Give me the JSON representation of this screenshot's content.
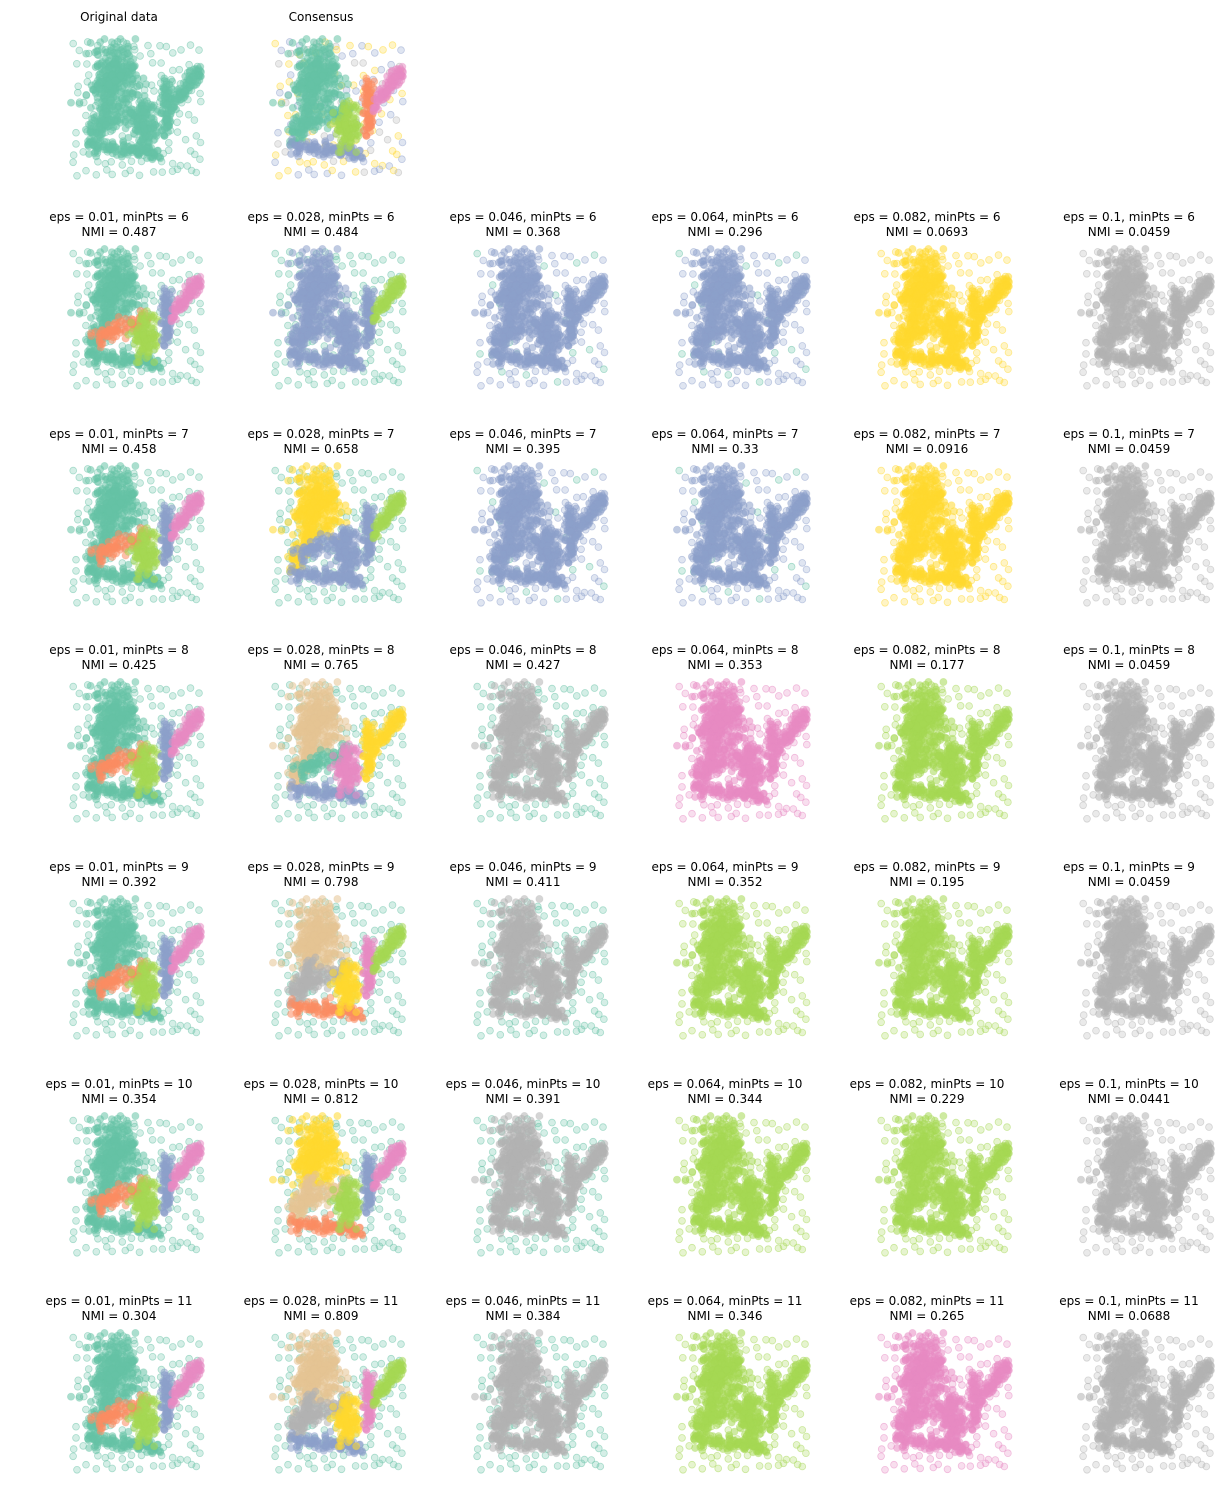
{
  "chart_data": {
    "type": "scatter",
    "grid": false,
    "axes_visible": false,
    "palette": {
      "teal": "#66c2a5",
      "orange": "#fc8d62",
      "blue": "#8da0cb",
      "pink": "#e78ac3",
      "green": "#a6d854",
      "yellow": "#ffd92f",
      "tan": "#e5c494",
      "gray": "#b3b3b3"
    },
    "top_row": [
      {
        "title": "Original data",
        "scheme": "original"
      },
      {
        "title": "Consensus",
        "scheme": "consensus"
      }
    ],
    "eps_values": [
      "0.01",
      "0.028",
      "0.046",
      "0.064",
      "0.082",
      "0.1"
    ],
    "rows": [
      {
        "minPts": "6",
        "titles": [
          "eps = 0.01, minPts = 6",
          "eps = 0.028, minPts = 6",
          "eps = 0.046, minPts = 6",
          "eps = 0.064, minPts = 6",
          "eps = 0.082, minPts = 6",
          "eps = 0.1, minPts = 6"
        ],
        "nmi": [
          "NMI = 0.487",
          "NMI = 0.484",
          "NMI = 0.368",
          "NMI = 0.296",
          "NMI = 0.0693",
          "NMI = 0.0459"
        ],
        "schemes": [
          "small",
          "blue-left",
          "blue-all",
          "blue-all",
          "yellow-all",
          "gray-all"
        ]
      },
      {
        "minPts": "7",
        "titles": [
          "eps = 0.01, minPts = 7",
          "eps = 0.028, minPts = 7",
          "eps = 0.046, minPts = 7",
          "eps = 0.064, minPts = 7",
          "eps = 0.082, minPts = 7",
          "eps = 0.1, minPts = 7"
        ],
        "nmi": [
          "NMI = 0.458",
          "NMI = 0.658",
          "NMI = 0.395",
          "NMI = 0.33",
          "NMI = 0.0916",
          "NMI = 0.0459"
        ],
        "schemes": [
          "small",
          "yellow-left",
          "blue-all",
          "blue-all",
          "yellow-all",
          "gray-all"
        ]
      },
      {
        "minPts": "8",
        "titles": [
          "eps = 0.01, minPts = 8",
          "eps = 0.028, minPts = 8",
          "eps = 0.046, minPts = 8",
          "eps = 0.064, minPts = 8",
          "eps = 0.082, minPts = 8",
          "eps = 0.1, minPts = 8"
        ],
        "nmi": [
          "NMI = 0.425",
          "NMI = 0.765",
          "NMI = 0.427",
          "NMI = 0.353",
          "NMI = 0.177",
          "NMI = 0.0459"
        ],
        "schemes": [
          "small",
          "multi-a",
          "gray-core",
          "pink-all",
          "green-all",
          "gray-all"
        ]
      },
      {
        "minPts": "9",
        "titles": [
          "eps = 0.01, minPts = 9",
          "eps = 0.028, minPts = 9",
          "eps = 0.046, minPts = 9",
          "eps = 0.064, minPts = 9",
          "eps = 0.082, minPts = 9",
          "eps = 0.1, minPts = 9"
        ],
        "nmi": [
          "NMI = 0.392",
          "NMI = 0.798",
          "NMI = 0.411",
          "NMI = 0.352",
          "NMI = 0.195",
          "NMI = 0.0459"
        ],
        "schemes": [
          "small",
          "multi-b",
          "gray-core",
          "green-all",
          "green-all",
          "gray-all"
        ]
      },
      {
        "minPts": "10",
        "titles": [
          "eps = 0.01, minPts = 10",
          "eps = 0.028, minPts = 10",
          "eps = 0.046, minPts = 10",
          "eps = 0.064, minPts = 10",
          "eps = 0.082, minPts = 10",
          "eps = 0.1, minPts = 10"
        ],
        "nmi": [
          "NMI = 0.354",
          "NMI = 0.812",
          "NMI = 0.391",
          "NMI = 0.344",
          "NMI = 0.229",
          "NMI = 0.0441"
        ],
        "schemes": [
          "small",
          "multi-c",
          "gray-core",
          "green-all",
          "green-all",
          "gray-all"
        ]
      },
      {
        "minPts": "11",
        "titles": [
          "eps = 0.01, minPts = 11",
          "eps = 0.028, minPts = 11",
          "eps = 0.046, minPts = 11",
          "eps = 0.064, minPts = 11",
          "eps = 0.082, minPts = 11",
          "eps = 0.1, minPts = 11"
        ],
        "nmi": [
          "NMI = 0.304",
          "NMI = 0.809",
          "NMI = 0.384",
          "NMI = 0.346",
          "NMI = 0.265",
          "NMI = 0.0688"
        ],
        "schemes": [
          "small",
          "multi-d",
          "gray-core",
          "green-all",
          "pink-all",
          "gray-all"
        ]
      }
    ]
  }
}
